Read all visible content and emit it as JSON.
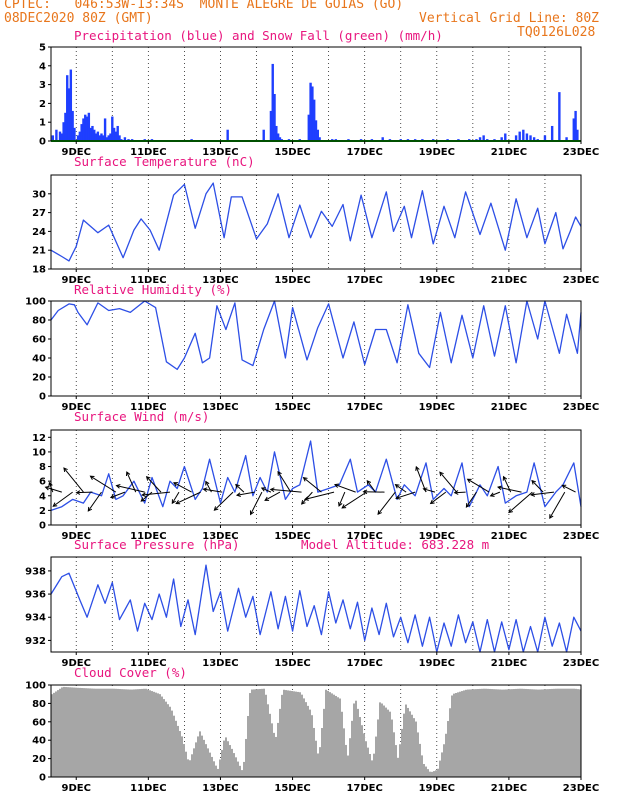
{
  "header": {
    "line1": "CPTEC:   046:53W-13:34S  MONTE ALEGRE DE GOIAS (GO)",
    "line2_left": "08DEC2020 80Z (GMT)",
    "line2_right": "Vertical Grid Line: 80Z",
    "line3_right": "TQ0126L028"
  },
  "colors": {
    "header": "#e8761c",
    "title": "#e8157e",
    "rain": "#1f3fff",
    "snow": "#00a000",
    "line": "#2d4fe6",
    "cloud": "#a6a6a6",
    "arrow": "#000000"
  },
  "x_ticks": [
    "9DEC",
    "11DEC",
    "13DEC",
    "15DEC",
    "17DEC",
    "19DEC",
    "21DEC",
    "23DEC"
  ],
  "chart_data": [
    {
      "type": "bar",
      "title": "Precipitation (blue) and Snow Fall (green) (mm/h)",
      "xlabel": "",
      "ylabel": "",
      "xlim": [
        8.3,
        23.0
      ],
      "ylim": [
        0,
        5
      ],
      "y_ticks": [
        "0",
        "1",
        "2",
        "3",
        "4",
        "5"
      ],
      "series": [
        {
          "name": "Precipitation",
          "x": [
            8.35,
            8.45,
            8.55,
            8.6,
            8.65,
            8.7,
            8.75,
            8.8,
            8.85,
            8.9,
            8.95,
            9.05,
            9.1,
            9.15,
            9.2,
            9.25,
            9.3,
            9.35,
            9.4,
            9.45,
            9.5,
            9.55,
            9.6,
            9.65,
            9.7,
            9.75,
            9.8,
            9.85,
            9.9,
            9.95,
            10.0,
            10.05,
            10.1,
            10.15,
            10.2,
            10.25,
            10.35,
            10.45,
            10.55,
            10.9,
            11.1,
            12.2,
            13.2,
            14.2,
            14.4,
            14.45,
            14.5,
            14.55,
            14.6,
            14.65,
            14.7,
            14.9,
            15.2,
            15.45,
            15.5,
            15.55,
            15.6,
            15.65,
            15.7,
            15.75,
            16.1,
            16.2,
            16.55,
            16.9,
            17.2,
            17.5,
            17.7,
            18.0,
            18.2,
            18.4,
            18.6,
            18.9,
            19.3,
            19.6,
            19.9,
            20.1,
            20.2,
            20.3,
            20.4,
            20.6,
            20.8,
            20.9,
            21.2,
            21.3,
            21.4,
            21.5,
            21.6,
            21.7,
            21.8,
            22.0,
            22.2,
            22.4,
            22.6,
            22.8,
            22.85,
            22.9
          ],
          "values": [
            0.3,
            0.6,
            0.5,
            0.4,
            1.0,
            1.5,
            3.5,
            2.8,
            3.8,
            1.6,
            0.7,
            0.3,
            0.5,
            0.9,
            1.2,
            1.4,
            1.3,
            1.5,
            0.7,
            0.8,
            0.6,
            0.4,
            0.5,
            0.3,
            0.4,
            0.3,
            1.2,
            0.2,
            0.3,
            0.4,
            1.3,
            0.7,
            0.5,
            0.8,
            0.3,
            0.1,
            0.2,
            0.1,
            0.1,
            0.1,
            0.1,
            0.1,
            0.6,
            0.6,
            1.6,
            4.1,
            2.5,
            0.8,
            0.4,
            0.2,
            0.1,
            0.1,
            0.1,
            1.4,
            3.1,
            2.9,
            2.2,
            1.1,
            0.6,
            0.2,
            0.1,
            0.1,
            0.1,
            0.1,
            0.1,
            0.2,
            0.1,
            0.1,
            0.1,
            0.1,
            0.1,
            0.1,
            0.1,
            0.1,
            0.1,
            0.1,
            0.2,
            0.3,
            0.1,
            0.1,
            0.2,
            0.4,
            0.3,
            0.5,
            0.6,
            0.4,
            0.3,
            0.2,
            0.1,
            0.3,
            0.8,
            2.6,
            0.2,
            1.2,
            1.6,
            0.6
          ]
        },
        {
          "name": "Snow Fall",
          "x": [
            8.3,
            23.0
          ],
          "values": [
            0.05,
            0.05
          ]
        }
      ]
    },
    {
      "type": "line",
      "title": "Surface Temperature (nC)",
      "xlabel": "",
      "ylabel": "",
      "xlim": [
        8.3,
        23.0
      ],
      "ylim": [
        18,
        33
      ],
      "y_ticks": [
        "18",
        "21",
        "24",
        "27",
        "30"
      ],
      "series": [
        {
          "x": [
            8.3,
            8.6,
            8.8,
            9.0,
            9.2,
            9.6,
            9.9,
            10.3,
            10.6,
            10.8,
            11.05,
            11.3,
            11.7,
            12.0,
            12.3,
            12.6,
            12.8,
            13.1,
            13.3,
            13.6,
            14.0,
            14.3,
            14.6,
            14.9,
            15.2,
            15.5,
            15.8,
            16.1,
            16.4,
            16.6,
            16.9,
            17.2,
            17.6,
            17.8,
            18.1,
            18.3,
            18.6,
            18.9,
            19.2,
            19.5,
            19.8,
            20.2,
            20.5,
            20.9,
            21.2,
            21.5,
            21.8,
            22.0,
            22.3,
            22.5,
            22.7,
            22.85,
            23.0
          ],
          "values": [
            21,
            20,
            19.3,
            21.6,
            25.8,
            23.8,
            25.0,
            19.8,
            24.2,
            26.0,
            24.2,
            21.0,
            29.8,
            31.5,
            24.5,
            30.0,
            31.7,
            23.0,
            29.5,
            29.5,
            22.8,
            25.2,
            30.0,
            23.0,
            28.2,
            23.0,
            27.2,
            24.8,
            28.3,
            22.5,
            29.8,
            23.0,
            30.3,
            24.0,
            28.0,
            23.0,
            30.5,
            22.0,
            28.0,
            23.0,
            30.3,
            23.5,
            28.5,
            21.0,
            29.2,
            23.0,
            27.7,
            22.0,
            27.0,
            21.2,
            24.0,
            26.3,
            24.8
          ]
        }
      ]
    },
    {
      "type": "line",
      "title": "Relative Humidity (%)",
      "xlabel": "",
      "ylabel": "",
      "xlim": [
        8.3,
        23.0
      ],
      "ylim": [
        0,
        100
      ],
      "y_ticks": [
        "0",
        "20",
        "40",
        "60",
        "80",
        "100"
      ],
      "series": [
        {
          "x": [
            8.3,
            8.5,
            8.8,
            8.95,
            9.05,
            9.3,
            9.6,
            9.9,
            10.2,
            10.5,
            10.9,
            11.2,
            11.5,
            11.8,
            12.0,
            12.3,
            12.5,
            12.7,
            12.9,
            13.15,
            13.4,
            13.6,
            13.9,
            14.2,
            14.5,
            14.8,
            15.0,
            15.4,
            15.7,
            16.0,
            16.4,
            16.7,
            17.0,
            17.3,
            17.6,
            17.9,
            18.2,
            18.5,
            18.8,
            19.1,
            19.4,
            19.7,
            20.0,
            20.3,
            20.6,
            20.9,
            21.2,
            21.5,
            21.8,
            22.0,
            22.4,
            22.6,
            22.9,
            23.0
          ],
          "values": [
            80,
            90,
            97,
            96,
            88,
            75,
            98,
            90,
            92,
            88,
            100,
            93,
            36,
            28,
            40,
            66,
            35,
            40,
            95,
            70,
            98,
            38,
            32,
            70,
            100,
            40,
            93,
            38,
            72,
            97,
            40,
            78,
            33,
            70,
            70,
            35,
            96,
            45,
            30,
            88,
            35,
            85,
            40,
            95,
            42,
            95,
            35,
            100,
            60,
            100,
            45,
            86,
            45,
            88
          ]
        }
      ]
    },
    {
      "type": "line",
      "title": "Surface Wind (m/s)",
      "xlabel": "",
      "ylabel": "",
      "xlim": [
        8.3,
        23.0
      ],
      "ylim": [
        0,
        13
      ],
      "y_ticks": [
        "0",
        "2",
        "4",
        "6",
        "8",
        "10",
        "12"
      ],
      "series": [
        {
          "x": [
            8.3,
            8.6,
            8.9,
            9.2,
            9.4,
            9.7,
            9.9,
            10.1,
            10.3,
            10.6,
            10.9,
            11.1,
            11.4,
            11.6,
            11.8,
            12.0,
            12.3,
            12.5,
            12.7,
            13.0,
            13.2,
            13.4,
            13.7,
            13.9,
            14.1,
            14.3,
            14.5,
            14.8,
            15.0,
            15.2,
            15.5,
            15.7,
            16.0,
            16.3,
            16.6,
            16.8,
            17.1,
            17.3,
            17.6,
            17.9,
            18.1,
            18.4,
            18.7,
            18.9,
            19.2,
            19.4,
            19.7,
            19.9,
            20.2,
            20.4,
            20.7,
            20.9,
            21.2,
            21.5,
            21.7,
            22.0,
            22.3,
            22.5,
            22.8,
            23.0
          ],
          "values": [
            2,
            2.5,
            3.5,
            3.0,
            4.5,
            4.0,
            7.0,
            3.5,
            4.0,
            6.0,
            3.0,
            6.5,
            2.5,
            6.0,
            5.0,
            8.0,
            3.5,
            5.0,
            9.0,
            3.0,
            6.5,
            4.5,
            9.5,
            4.0,
            6.5,
            4.5,
            10.0,
            3.5,
            5.0,
            5.5,
            11.5,
            4.5,
            5.0,
            5.5,
            9.0,
            4.5,
            5.5,
            4.5,
            9.0,
            3.5,
            5.5,
            4.0,
            8.5,
            3.5,
            5.0,
            4.0,
            8.5,
            2.5,
            5.5,
            4.0,
            8.0,
            3.0,
            4.0,
            4.5,
            8.5,
            2.5,
            4.5,
            5.5,
            8.5,
            2.5
          ]
        }
      ],
      "arrows_x": [
        8.35,
        8.6,
        8.9,
        9.2,
        9.45,
        9.7,
        10.1,
        10.35,
        10.65,
        10.9,
        11.1,
        11.35,
        11.6,
        11.85,
        12.2,
        12.45,
        12.75,
        13.05,
        13.35,
        13.65,
        13.95,
        14.15,
        14.4,
        14.65,
        14.95,
        15.25,
        15.55,
        15.8,
        16.15,
        16.45,
        16.75,
        17.05,
        17.3,
        17.55,
        17.85,
        18.15,
        18.4,
        18.7,
        18.95,
        19.25,
        19.55,
        19.8,
        20.1,
        20.45,
        20.75,
        21.05,
        21.35,
        21.65,
        21.95,
        22.25,
        22.55,
        22.85
      ]
    },
    {
      "type": "line",
      "title": "Surface Pressure (hPa)",
      "annotation": "Model Altitude: 683.228  m",
      "xlabel": "",
      "ylabel": "",
      "xlim": [
        8.3,
        23.0
      ],
      "ylim": [
        931.0,
        939.2
      ],
      "y_ticks": [
        "932",
        "934",
        "936",
        "938"
      ],
      "series": [
        {
          "x": [
            8.3,
            8.5,
            8.6,
            8.8,
            9.1,
            9.3,
            9.6,
            9.8,
            10.0,
            10.2,
            10.5,
            10.7,
            10.9,
            11.1,
            11.3,
            11.5,
            11.7,
            11.9,
            12.1,
            12.3,
            12.6,
            12.8,
            13.0,
            13.2,
            13.5,
            13.7,
            13.9,
            14.1,
            14.4,
            14.6,
            14.8,
            15.0,
            15.2,
            15.4,
            15.6,
            15.8,
            16.0,
            16.2,
            16.4,
            16.6,
            16.8,
            17.0,
            17.2,
            17.4,
            17.6,
            17.8,
            18.0,
            18.2,
            18.4,
            18.6,
            18.8,
            19.0,
            19.2,
            19.4,
            19.6,
            19.8,
            20.0,
            20.2,
            20.4,
            20.6,
            20.8,
            21.0,
            21.2,
            21.4,
            21.6,
            21.8,
            22.0,
            22.2,
            22.4,
            22.6,
            22.8,
            23.0
          ],
          "values": [
            936.0,
            937.0,
            937.5,
            937.8,
            935.5,
            934.0,
            936.8,
            935.2,
            937.0,
            933.8,
            935.5,
            932.8,
            935.2,
            933.8,
            936.0,
            934.0,
            937.3,
            933.2,
            935.5,
            932.5,
            938.5,
            934.5,
            936.2,
            932.8,
            936.5,
            934.0,
            935.8,
            932.5,
            936.2,
            933.0,
            935.8,
            932.8,
            936.3,
            933.2,
            935.0,
            932.5,
            936.2,
            933.5,
            935.5,
            933.0,
            935.3,
            932.0,
            934.8,
            932.5,
            935.2,
            932.3,
            934.0,
            931.8,
            934.2,
            931.5,
            934.0,
            930.8,
            933.5,
            931.5,
            934.2,
            931.8,
            933.6,
            930.8,
            933.8,
            930.8,
            933.6,
            931.2,
            933.8,
            930.8,
            933.2,
            931.0,
            934.0,
            931.5,
            933.5,
            931.0,
            934.0,
            932.8
          ]
        }
      ]
    },
    {
      "type": "bar",
      "title": "Cloud Cover (%)",
      "xlabel": "",
      "ylabel": "",
      "xlim": [
        8.3,
        23.0
      ],
      "ylim": [
        0,
        100
      ],
      "y_ticks": [
        "0",
        "20",
        "40",
        "60",
        "80",
        "100"
      ],
      "profile": [
        [
          8.3,
          90
        ],
        [
          8.6,
          98
        ],
        [
          9.0,
          97
        ],
        [
          9.5,
          96
        ],
        [
          10.0,
          96
        ],
        [
          10.5,
          95
        ],
        [
          10.9,
          96
        ],
        [
          11.3,
          90
        ],
        [
          11.6,
          75
        ],
        [
          11.9,
          45
        ],
        [
          12.1,
          15
        ],
        [
          12.4,
          50
        ],
        [
          12.7,
          25
        ],
        [
          12.9,
          8
        ],
        [
          13.1,
          45
        ],
        [
          13.3,
          30
        ],
        [
          13.6,
          5
        ],
        [
          13.8,
          95
        ],
        [
          14.2,
          96
        ],
        [
          14.5,
          40
        ],
        [
          14.7,
          95
        ],
        [
          15.2,
          92
        ],
        [
          15.5,
          70
        ],
        [
          15.7,
          20
        ],
        [
          15.9,
          95
        ],
        [
          16.3,
          85
        ],
        [
          16.5,
          20
        ],
        [
          16.7,
          88
        ],
        [
          17.0,
          40
        ],
        [
          17.2,
          15
        ],
        [
          17.4,
          82
        ],
        [
          17.7,
          70
        ],
        [
          17.9,
          20
        ],
        [
          18.1,
          80
        ],
        [
          18.4,
          60
        ],
        [
          18.6,
          15
        ],
        [
          18.8,
          5
        ],
        [
          19.0,
          8
        ],
        [
          19.2,
          40
        ],
        [
          19.4,
          90
        ],
        [
          19.8,
          95
        ],
        [
          20.3,
          96
        ],
        [
          20.8,
          95
        ],
        [
          21.3,
          96
        ],
        [
          21.8,
          95
        ],
        [
          22.3,
          96
        ],
        [
          22.8,
          96
        ],
        [
          23.0,
          95
        ]
      ]
    }
  ]
}
